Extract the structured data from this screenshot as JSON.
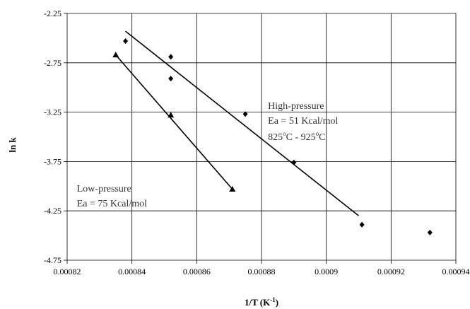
{
  "chart_data": {
    "type": "scatter",
    "xlabel": "1/T (K",
    "xlabel_sup": "-1",
    "xlabel_suffix": ")",
    "ylabel": "ln k",
    "xlim": [
      0.00082,
      0.00094
    ],
    "ylim": [
      -4.75,
      -2.25
    ],
    "x_ticks": [
      "0.00082",
      "0.00084",
      "0.00086",
      "0.00088",
      "0.0009",
      "0.00092",
      "0.00094"
    ],
    "y_ticks": [
      "-2.25",
      "-2.75",
      "-3.25",
      "-3.75",
      "-4.25",
      "-4.75"
    ],
    "grid": true,
    "series": [
      {
        "marker": "diamond",
        "color": "#000000",
        "points": [
          {
            "x": 0.000838,
            "y": -2.53
          },
          {
            "x": 0.000852,
            "y": -2.69
          },
          {
            "x": 0.000852,
            "y": -2.91
          },
          {
            "x": 0.000875,
            "y": -3.27
          },
          {
            "x": 0.00089,
            "y": -3.76
          },
          {
            "x": 0.000911,
            "y": -4.39
          },
          {
            "x": 0.000932,
            "y": -4.47
          }
        ],
        "fit": [
          {
            "x": 0.000838,
            "y": -2.43
          },
          {
            "x": 0.00091,
            "y": -4.3
          }
        ]
      },
      {
        "marker": "triangle",
        "color": "#000000",
        "points": [
          {
            "x": 0.000835,
            "y": -2.67
          },
          {
            "x": 0.000852,
            "y": -3.28
          },
          {
            "x": 0.000871,
            "y": -4.03
          }
        ],
        "fit": [
          {
            "x": 0.000835,
            "y": -2.67
          },
          {
            "x": 0.000871,
            "y": -4.03
          }
        ]
      }
    ],
    "annotations": {
      "high": {
        "x": 0.000882,
        "line1": "High-pressure",
        "line2": "Ea = 51 Kcal/mol",
        "line3_a": "825",
        "line3_deg1": "o",
        "line3_b": "C - 925",
        "line3_deg2": "o",
        "line3_c": "C"
      },
      "low": {
        "x": 0.000823,
        "line1": "Low-pressure",
        "line2": "Ea = 75 Kcal/mol"
      }
    }
  }
}
